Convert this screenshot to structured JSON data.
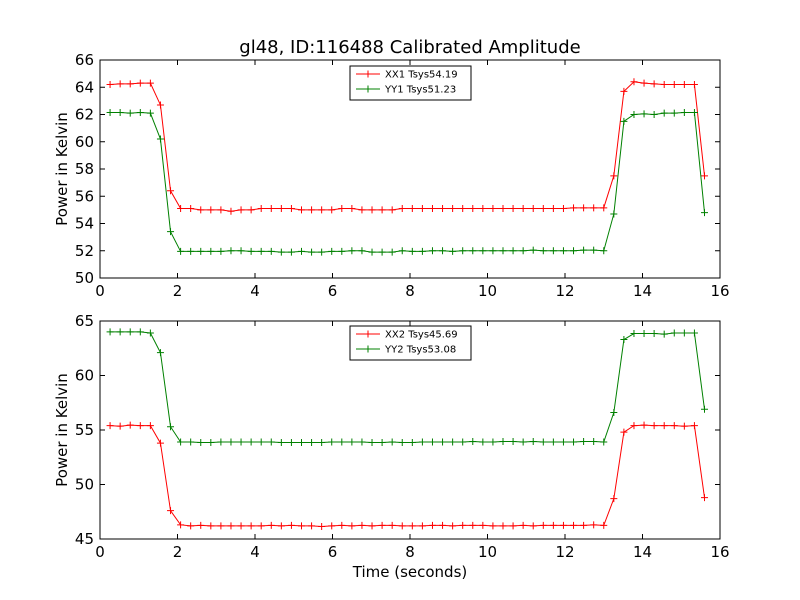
{
  "title": "gl48, ID:116488 Calibrated Amplitude",
  "chart_data": [
    {
      "type": "line",
      "ylabel": "Power in Kelvin",
      "xlabel": "",
      "xlim": [
        0,
        16
      ],
      "ylim": [
        50,
        66
      ],
      "xticks": [
        0,
        2,
        4,
        6,
        8,
        10,
        12,
        14,
        16
      ],
      "yticks": [
        50,
        52,
        54,
        56,
        58,
        60,
        62,
        64,
        66
      ],
      "grid": false,
      "legend_position": "top-center",
      "x": [
        0.26,
        0.52,
        0.78,
        1.04,
        1.3,
        1.56,
        1.82,
        2.08,
        2.34,
        2.6,
        2.86,
        3.12,
        3.38,
        3.64,
        3.9,
        4.16,
        4.42,
        4.68,
        4.94,
        5.2,
        5.46,
        5.72,
        5.98,
        6.24,
        6.5,
        6.76,
        7.02,
        7.28,
        7.54,
        7.8,
        8.06,
        8.32,
        8.58,
        8.84,
        9.1,
        9.36,
        9.62,
        9.88,
        10.14,
        10.4,
        10.66,
        10.92,
        11.18,
        11.44,
        11.7,
        11.96,
        12.22,
        12.48,
        12.74,
        13.0,
        13.26,
        13.52,
        13.78,
        14.04,
        14.3,
        14.56,
        14.82,
        15.08,
        15.34,
        15.6
      ],
      "series": [
        {
          "name": "XX1 Tsys54.19",
          "color": "#ff0000",
          "values": [
            64.2,
            64.25,
            64.25,
            64.3,
            64.3,
            62.7,
            56.4,
            55.1,
            55.1,
            55.0,
            55.0,
            55.0,
            54.9,
            55.0,
            55.0,
            55.1,
            55.1,
            55.1,
            55.1,
            55.0,
            55.0,
            55.0,
            55.0,
            55.1,
            55.1,
            55.0,
            55.0,
            55.0,
            55.0,
            55.1,
            55.1,
            55.1,
            55.1,
            55.1,
            55.1,
            55.1,
            55.1,
            55.1,
            55.1,
            55.1,
            55.1,
            55.1,
            55.1,
            55.1,
            55.1,
            55.1,
            55.15,
            55.15,
            55.15,
            55.15,
            57.5,
            63.7,
            64.4,
            64.3,
            64.25,
            64.2,
            64.2,
            64.2,
            64.2,
            57.5
          ]
        },
        {
          "name": "YY1 Tsys51.23",
          "color": "#008000",
          "values": [
            62.15,
            62.15,
            62.1,
            62.15,
            62.1,
            60.2,
            53.4,
            51.95,
            51.95,
            51.95,
            51.95,
            51.95,
            52.0,
            52.0,
            51.95,
            51.95,
            51.95,
            51.9,
            51.9,
            51.95,
            51.9,
            51.9,
            51.95,
            51.95,
            52.0,
            52.0,
            51.9,
            51.9,
            51.9,
            52.0,
            51.95,
            51.95,
            52.0,
            52.0,
            51.95,
            52.0,
            52.0,
            52.0,
            52.0,
            52.0,
            52.0,
            52.0,
            52.05,
            52.0,
            52.0,
            52.0,
            52.0,
            52.05,
            52.05,
            52.0,
            54.7,
            61.5,
            62.0,
            62.05,
            62.0,
            62.1,
            62.1,
            62.15,
            62.15,
            54.8
          ]
        }
      ]
    },
    {
      "type": "line",
      "ylabel": "Power in Kelvin",
      "xlabel": "Time (seconds)",
      "xlim": [
        0,
        16
      ],
      "ylim": [
        45,
        65
      ],
      "xticks": [
        0,
        2,
        4,
        6,
        8,
        10,
        12,
        14,
        16
      ],
      "yticks": [
        45,
        50,
        55,
        60,
        65
      ],
      "grid": false,
      "legend_position": "top-center",
      "x": [
        0.26,
        0.52,
        0.78,
        1.04,
        1.3,
        1.56,
        1.82,
        2.08,
        2.34,
        2.6,
        2.86,
        3.12,
        3.38,
        3.64,
        3.9,
        4.16,
        4.42,
        4.68,
        4.94,
        5.2,
        5.46,
        5.72,
        5.98,
        6.24,
        6.5,
        6.76,
        7.02,
        7.28,
        7.54,
        7.8,
        8.06,
        8.32,
        8.58,
        8.84,
        9.1,
        9.36,
        9.62,
        9.88,
        10.14,
        10.4,
        10.66,
        10.92,
        11.18,
        11.44,
        11.7,
        11.96,
        12.22,
        12.48,
        12.74,
        13.0,
        13.26,
        13.52,
        13.78,
        14.04,
        14.3,
        14.56,
        14.82,
        15.08,
        15.34,
        15.6
      ],
      "series": [
        {
          "name": "XX2 Tsys45.69",
          "color": "#ff0000",
          "values": [
            55.4,
            55.35,
            55.45,
            55.4,
            55.4,
            53.8,
            47.6,
            46.3,
            46.2,
            46.25,
            46.2,
            46.2,
            46.2,
            46.2,
            46.2,
            46.2,
            46.25,
            46.2,
            46.25,
            46.2,
            46.2,
            46.15,
            46.2,
            46.25,
            46.2,
            46.25,
            46.2,
            46.25,
            46.25,
            46.2,
            46.2,
            46.2,
            46.25,
            46.25,
            46.2,
            46.25,
            46.25,
            46.25,
            46.2,
            46.2,
            46.2,
            46.25,
            46.2,
            46.25,
            46.25,
            46.25,
            46.25,
            46.25,
            46.3,
            46.25,
            48.7,
            54.8,
            55.4,
            55.45,
            55.4,
            55.4,
            55.4,
            55.35,
            55.4,
            48.8
          ]
        },
        {
          "name": "YY2 Tsys53.08",
          "color": "#008000",
          "values": [
            64.0,
            64.0,
            64.0,
            64.0,
            63.9,
            62.1,
            55.3,
            53.9,
            53.9,
            53.85,
            53.85,
            53.9,
            53.9,
            53.9,
            53.9,
            53.9,
            53.9,
            53.85,
            53.85,
            53.85,
            53.85,
            53.85,
            53.9,
            53.9,
            53.9,
            53.9,
            53.85,
            53.85,
            53.9,
            53.85,
            53.85,
            53.9,
            53.9,
            53.9,
            53.9,
            53.9,
            53.95,
            53.9,
            53.9,
            53.95,
            53.95,
            53.9,
            53.95,
            53.9,
            53.9,
            53.9,
            53.9,
            53.95,
            53.95,
            53.9,
            56.6,
            63.3,
            63.85,
            63.85,
            63.85,
            63.8,
            63.9,
            63.9,
            63.9,
            56.9
          ]
        }
      ]
    }
  ]
}
